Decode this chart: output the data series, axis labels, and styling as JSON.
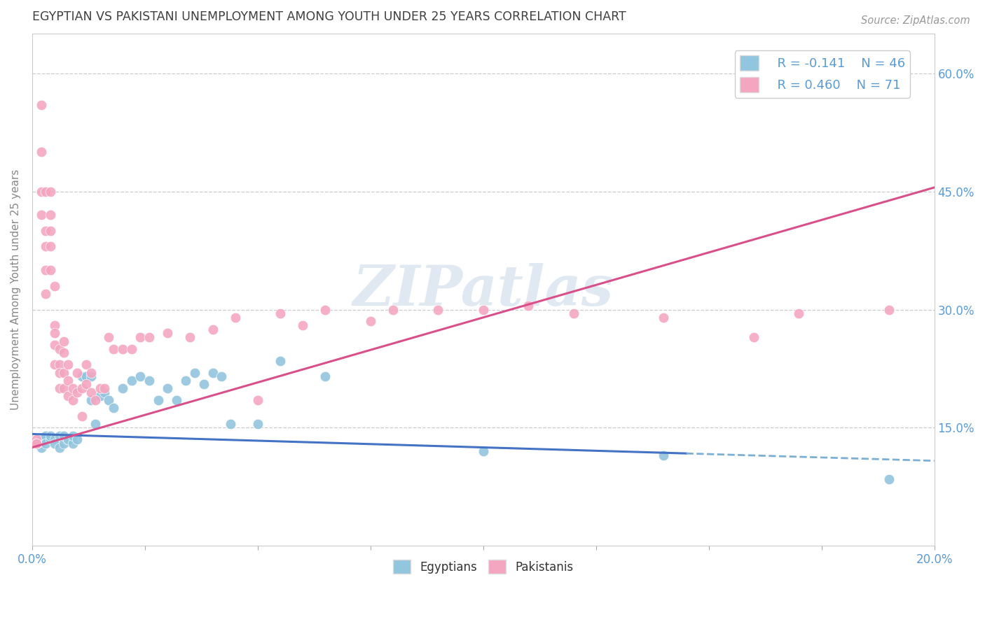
{
  "title": "EGYPTIAN VS PAKISTANI UNEMPLOYMENT AMONG YOUTH UNDER 25 YEARS CORRELATION CHART",
  "source": "Source: ZipAtlas.com",
  "ylabel": "Unemployment Among Youth under 25 years",
  "xlim": [
    0.0,
    0.2
  ],
  "ylim": [
    0.0,
    0.65
  ],
  "xticks": [
    0.0,
    0.025,
    0.05,
    0.075,
    0.1,
    0.125,
    0.15,
    0.175,
    0.2
  ],
  "yticks": [
    0.0,
    0.15,
    0.3,
    0.45,
    0.6
  ],
  "legend_r1": "R = -0.141",
  "legend_n1": "N = 46",
  "legend_r2": "R = 0.460",
  "legend_n2": "N = 71",
  "blue_color": "#92c5de",
  "pink_color": "#f4a6c0",
  "trend_blue_solid": "#4472c4",
  "trend_blue_dash": "#7bafd4",
  "trend_pink": "#d94f8a",
  "watermark": "ZIPatlas",
  "grid_color": "#cccccc",
  "title_color": "#404040",
  "axis_label_color": "#888888",
  "tick_label_color": "#5b9bd5",
  "blue_scatter_x": [
    0.001,
    0.002,
    0.002,
    0.003,
    0.003,
    0.004,
    0.004,
    0.005,
    0.005,
    0.006,
    0.006,
    0.007,
    0.007,
    0.008,
    0.008,
    0.009,
    0.009,
    0.01,
    0.011,
    0.012,
    0.013,
    0.013,
    0.014,
    0.015,
    0.016,
    0.017,
    0.018,
    0.02,
    0.022,
    0.024,
    0.026,
    0.028,
    0.03,
    0.032,
    0.034,
    0.036,
    0.038,
    0.04,
    0.042,
    0.044,
    0.05,
    0.055,
    0.065,
    0.1,
    0.14,
    0.19
  ],
  "blue_scatter_y": [
    0.13,
    0.135,
    0.125,
    0.14,
    0.13,
    0.135,
    0.14,
    0.135,
    0.13,
    0.125,
    0.14,
    0.13,
    0.14,
    0.135,
    0.135,
    0.13,
    0.14,
    0.135,
    0.215,
    0.215,
    0.185,
    0.215,
    0.155,
    0.19,
    0.195,
    0.185,
    0.175,
    0.2,
    0.21,
    0.215,
    0.21,
    0.185,
    0.2,
    0.185,
    0.21,
    0.22,
    0.205,
    0.22,
    0.215,
    0.155,
    0.155,
    0.235,
    0.215,
    0.12,
    0.115,
    0.085
  ],
  "pink_scatter_x": [
    0.001,
    0.001,
    0.001,
    0.001,
    0.002,
    0.002,
    0.002,
    0.002,
    0.003,
    0.003,
    0.003,
    0.003,
    0.003,
    0.004,
    0.004,
    0.004,
    0.004,
    0.004,
    0.005,
    0.005,
    0.005,
    0.005,
    0.005,
    0.006,
    0.006,
    0.006,
    0.006,
    0.007,
    0.007,
    0.007,
    0.007,
    0.008,
    0.008,
    0.008,
    0.009,
    0.009,
    0.01,
    0.01,
    0.011,
    0.011,
    0.012,
    0.012,
    0.013,
    0.013,
    0.014,
    0.015,
    0.016,
    0.017,
    0.018,
    0.02,
    0.022,
    0.024,
    0.026,
    0.03,
    0.035,
    0.04,
    0.045,
    0.05,
    0.055,
    0.06,
    0.065,
    0.075,
    0.08,
    0.09,
    0.1,
    0.11,
    0.12,
    0.14,
    0.16,
    0.17,
    0.19
  ],
  "pink_scatter_y": [
    0.135,
    0.13,
    0.13,
    0.13,
    0.56,
    0.5,
    0.45,
    0.42,
    0.45,
    0.4,
    0.38,
    0.35,
    0.32,
    0.45,
    0.42,
    0.4,
    0.38,
    0.35,
    0.33,
    0.28,
    0.27,
    0.255,
    0.23,
    0.25,
    0.23,
    0.22,
    0.2,
    0.26,
    0.245,
    0.22,
    0.2,
    0.23,
    0.21,
    0.19,
    0.2,
    0.185,
    0.22,
    0.195,
    0.2,
    0.165,
    0.23,
    0.205,
    0.22,
    0.195,
    0.185,
    0.2,
    0.2,
    0.265,
    0.25,
    0.25,
    0.25,
    0.265,
    0.265,
    0.27,
    0.265,
    0.275,
    0.29,
    0.185,
    0.295,
    0.28,
    0.3,
    0.285,
    0.3,
    0.3,
    0.3,
    0.305,
    0.295,
    0.29,
    0.265,
    0.295,
    0.3
  ],
  "trend_blue_x0": 0.0,
  "trend_blue_x1": 0.2,
  "trend_blue_y0": 0.142,
  "trend_blue_y1": 0.108,
  "trend_blue_solid_end": 0.145,
  "trend_pink_x0": 0.0,
  "trend_pink_x1": 0.2,
  "trend_pink_y0": 0.125,
  "trend_pink_y1": 0.455
}
